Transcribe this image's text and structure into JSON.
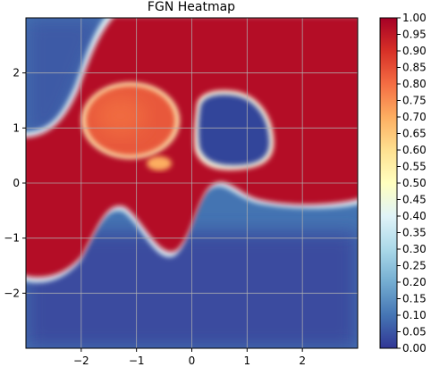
{
  "chart_data": {
    "type": "heatmap",
    "title": "FGN Heatmap",
    "xlabel": "",
    "ylabel": "",
    "xlim": [
      -3,
      3
    ],
    "ylim": [
      -3,
      3
    ],
    "grid": true,
    "x_ticks": [
      -2,
      -1,
      0,
      1,
      2
    ],
    "x_tick_labels": [
      "−2",
      "−1",
      "0",
      "1",
      "2"
    ],
    "y_ticks": [
      2,
      1,
      0,
      -1,
      -2
    ],
    "y_tick_labels": [
      "2",
      "1",
      "0",
      "−1",
      "−2"
    ],
    "colormap": "RdYlBu_r",
    "colormap_stops": [
      "#313695",
      "#4575b4",
      "#74add1",
      "#abd9e9",
      "#e0f3f8",
      "#ffffbf",
      "#fee090",
      "#fdae61",
      "#f46d43",
      "#d73027",
      "#a50026"
    ],
    "colorbar": {
      "min": 0,
      "max": 1,
      "ticks": [
        1.0,
        0.95,
        0.9,
        0.85,
        0.8,
        0.75,
        0.7,
        0.65,
        0.6,
        0.55,
        0.5,
        0.45,
        0.4,
        0.35,
        0.3,
        0.25,
        0.2,
        0.15,
        0.1,
        0.05,
        0.0
      ],
      "tick_labels": [
        "1.00",
        "0.95",
        "0.90",
        "0.85",
        "0.80",
        "0.75",
        "0.70",
        "0.65",
        "0.60",
        "0.55",
        "0.50",
        "0.45",
        "0.40",
        "0.35",
        "0.30",
        "0.25",
        "0.20",
        "0.15",
        "0.10",
        "0.05",
        "0.00"
      ]
    },
    "regions": [
      {
        "shape": "ellipse",
        "cx": -1.25,
        "cy": 1.15,
        "rx": 0.8,
        "ry": 0.62,
        "value": 0.78
      },
      {
        "shape": "ellipse",
        "cx": 1.0,
        "cy": 0.95,
        "rx": 0.62,
        "ry": 0.68,
        "value": 0.06
      }
    ]
  }
}
